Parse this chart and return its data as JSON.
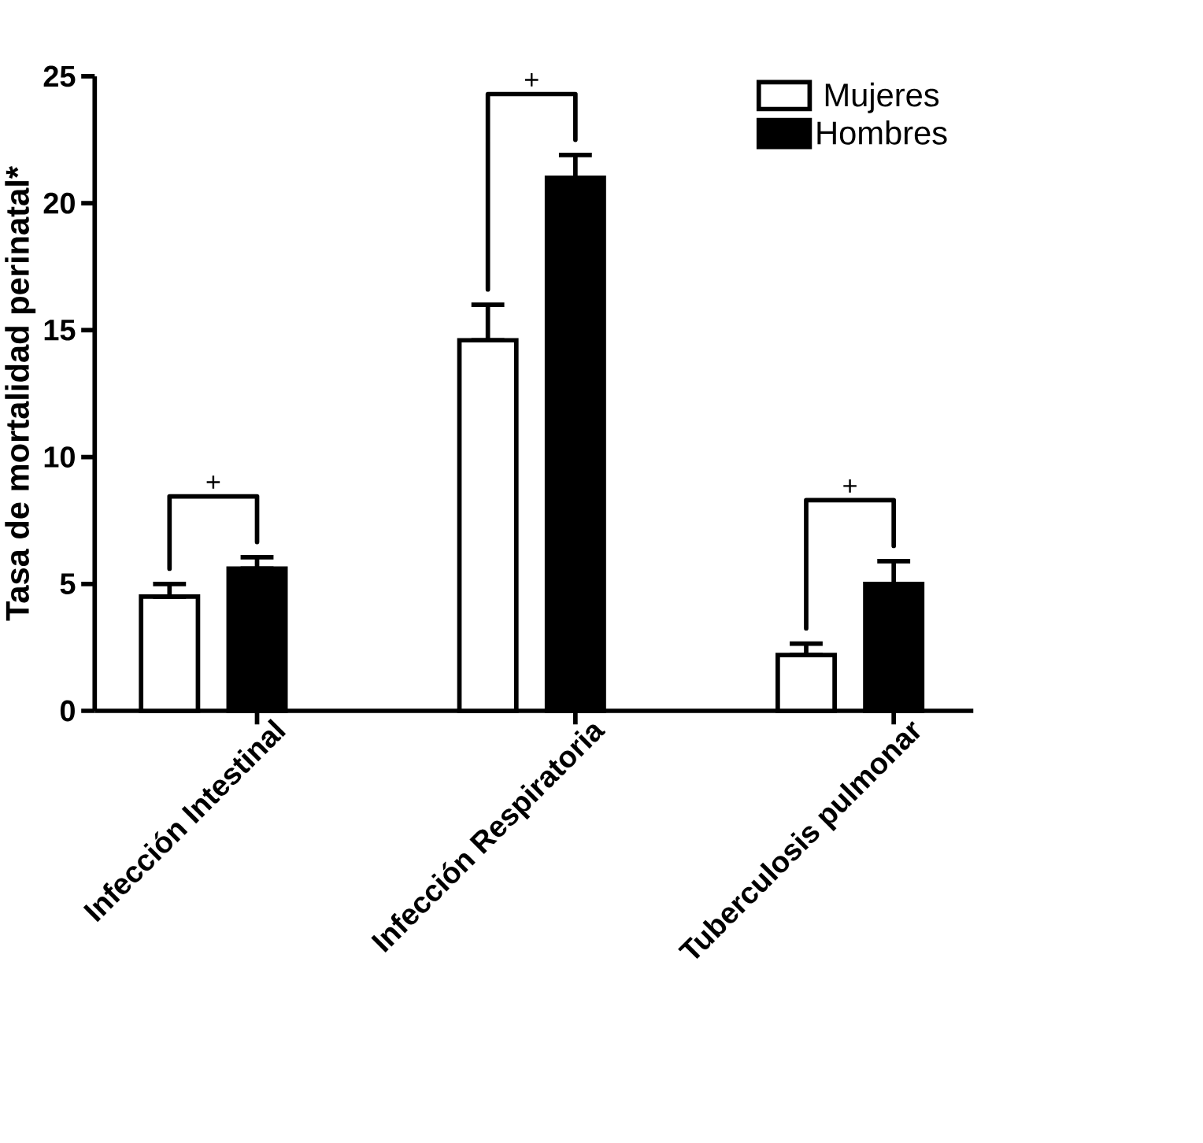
{
  "chart_data": {
    "type": "bar",
    "ylabel": "Tasa de mortalidad perinatal*",
    "categories": [
      "Infección Intestinal",
      "Infección Respiratoria",
      "Tuberculosis pulmonar"
    ],
    "series": [
      {
        "name": "Mujeres",
        "color": "#ffffff",
        "values": [
          4.5,
          14.6,
          2.2
        ],
        "errors": [
          [
            4.5,
            5.0
          ],
          [
            14.6,
            16.0
          ],
          [
            2.2,
            2.65
          ]
        ]
      },
      {
        "name": "Hombres",
        "color": "#000000",
        "values": [
          5.6,
          21.0,
          5.0
        ],
        "errors": [
          [
            5.6,
            6.05
          ],
          [
            21.0,
            21.9
          ],
          [
            5.0,
            5.9
          ]
        ]
      }
    ],
    "ylim": [
      0,
      25
    ],
    "yticks": [
      0,
      5,
      10,
      15,
      20,
      25
    ],
    "legend": "top right",
    "annotations": [
      "+",
      "+",
      "+"
    ]
  }
}
